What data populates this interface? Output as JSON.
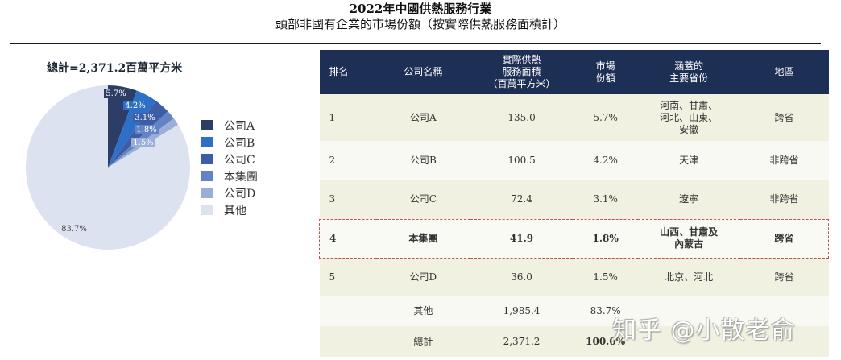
{
  "title": {
    "line1": "2022年中國供熱服務行業",
    "line2": "頭部非國有企業的市場份額（按實際供熱服務面積計）"
  },
  "chart_data": {
    "type": "pie",
    "title": "總計=2,371.2百萬平方米",
    "categories": [
      "公司A",
      "公司B",
      "公司C",
      "本集團",
      "公司D",
      "其他"
    ],
    "values": [
      5.7,
      4.2,
      3.1,
      1.8,
      1.5,
      83.7
    ],
    "labels": [
      "5.7%",
      "4.2%",
      "3.1%",
      "1.8%",
      "1.5%",
      "83.7%"
    ],
    "colors": [
      "#2c3e66",
      "#2e6fc7",
      "#3d5ea6",
      "#6383c3",
      "#9aafd8",
      "#dde2f0"
    ],
    "legend_position": "right"
  },
  "pie": {
    "total_label": "總計=2,371.2百萬平方米"
  },
  "legend": [
    {
      "label": "公司A",
      "color": "#2c3e66"
    },
    {
      "label": "公司B",
      "color": "#2e6fc7"
    },
    {
      "label": "公司C",
      "color": "#3d5ea6"
    },
    {
      "label": "本集團",
      "color": "#6383c3"
    },
    {
      "label": "公司D",
      "color": "#9aafd8"
    },
    {
      "label": "其他",
      "color": "#dde2f0"
    }
  ],
  "table": {
    "headers": [
      "排名",
      "公司名稱",
      "實際供熱\n服務面積\n（百萬平方米）",
      "市場\n份額",
      "涵蓋的\n主要省份",
      "地區"
    ],
    "rows": [
      {
        "rank": "1",
        "company": "公司A",
        "area": "135.0",
        "share": "5.7%",
        "provinces": "河南、甘肅、\n河北、山東、\n安徽",
        "region": "跨省"
      },
      {
        "rank": "2",
        "company": "公司B",
        "area": "100.5",
        "share": "4.2%",
        "provinces": "天津",
        "region": "非跨省"
      },
      {
        "rank": "3",
        "company": "公司C",
        "area": "72.4",
        "share": "3.1%",
        "provinces": "遼寧",
        "region": "非跨省"
      },
      {
        "rank": "4",
        "company": "本集團",
        "area": "41.9",
        "share": "1.8%",
        "provinces": "山西、甘肅及\n內蒙古",
        "region": "跨省"
      },
      {
        "rank": "5",
        "company": "公司D",
        "area": "36.0",
        "share": "1.5%",
        "provinces": "北京、河北",
        "region": "跨省"
      },
      {
        "rank": "",
        "company": "其他",
        "area": "1,985.4",
        "share": "83.7%",
        "provinces": "–",
        "region": "–"
      },
      {
        "rank": "",
        "company": "總計",
        "area": "2,371.2",
        "share": "100.0%",
        "provinces": "–",
        "region": "–"
      }
    ]
  },
  "watermark": "知乎 @小散老俞"
}
